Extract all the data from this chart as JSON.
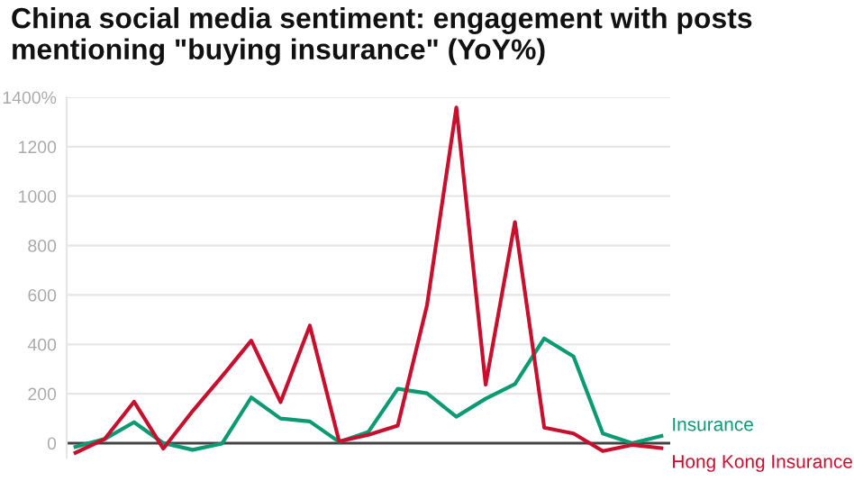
{
  "chart_data": {
    "type": "line",
    "title": "China social media sentiment: engagement with posts\nmentioning \"buying insurance\" (YoY%)",
    "categories": [
      null,
      null,
      null,
      null,
      null,
      null,
      null,
      null,
      null,
      null,
      null,
      null,
      null,
      null,
      null,
      null,
      null,
      null,
      null,
      null,
      null
    ],
    "series": [
      {
        "name": "Insurance",
        "color": "#0b9a72",
        "values": [
          -15,
          17,
          85,
          0,
          -27,
          -2,
          185,
          100,
          88,
          5,
          46,
          220,
          202,
          107,
          180,
          239,
          424,
          351,
          39,
          0,
          29
        ]
      },
      {
        "name": "Hong Kong Insurance",
        "color": "#c8102e",
        "values": [
          -39,
          17,
          168,
          -22,
          130,
          270,
          415,
          166,
          476,
          7,
          34,
          71,
          559,
          1359,
          237,
          895,
          63,
          39,
          -32,
          -7,
          -20
        ]
      }
    ],
    "ylim": [
      -60,
      1400
    ],
    "yticks": [
      0,
      200,
      400,
      600,
      800,
      1000,
      1200,
      {
        "value": 1400,
        "label": "1400%"
      }
    ],
    "grid": "y",
    "legend": false,
    "marker": "none",
    "line_style": "solid",
    "ref_lines": [
      {
        "axis": "y",
        "value": 0,
        "label": null,
        "color": "#444444"
      }
    ]
  }
}
